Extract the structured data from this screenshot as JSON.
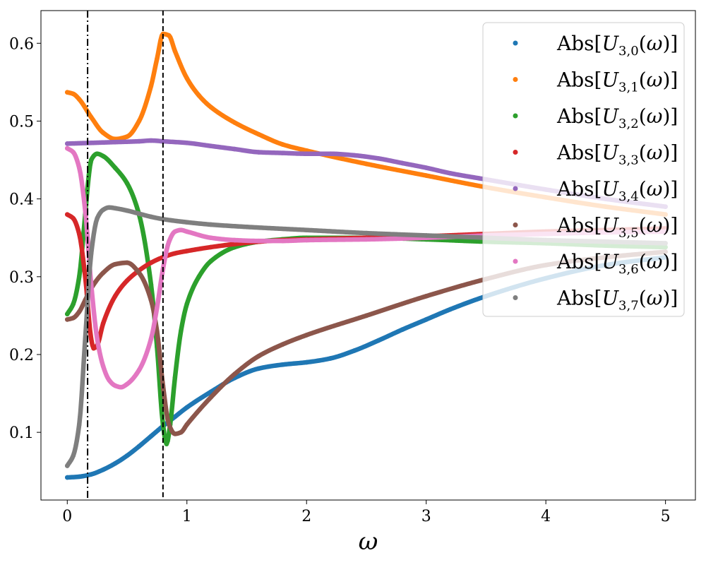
{
  "chart_data": {
    "type": "scatter",
    "title": "",
    "xlabel": "ω",
    "ylabel": "",
    "xlim": [
      -0.22,
      5.25
    ],
    "ylim": [
      0.013,
      0.642
    ],
    "x_ticks": [
      0,
      1,
      2,
      3,
      4,
      5
    ],
    "x_tick_labels": [
      "0",
      "1",
      "2",
      "3",
      "4",
      "5"
    ],
    "y_ticks": [
      0.1,
      0.2,
      0.3,
      0.4,
      0.5,
      0.6
    ],
    "y_tick_labels": [
      "0.1",
      "0.2",
      "0.3",
      "0.4",
      "0.5",
      "0.6"
    ],
    "grid": false,
    "legend_position": "top-right",
    "vertical_lines": [
      {
        "x": 0.17,
        "style": "dash-dot",
        "color": "#000000"
      },
      {
        "x": 0.8,
        "style": "dashed",
        "color": "#000000"
      }
    ],
    "series": [
      {
        "name": "Abs",
        "subscript": "3,0",
        "color": "#1f77b4",
        "x": [
          0,
          0.1,
          0.2,
          0.3,
          0.4,
          0.5,
          0.6,
          0.7,
          0.8,
          0.9,
          1.0,
          1.2,
          1.4,
          1.6,
          1.8,
          2.0,
          2.2,
          2.4,
          2.6,
          2.8,
          3.0,
          3.2,
          3.5,
          4.0,
          4.5,
          5.0
        ],
        "y": [
          0.042,
          0.043,
          0.046,
          0.052,
          0.06,
          0.07,
          0.082,
          0.095,
          0.108,
          0.12,
          0.132,
          0.152,
          0.17,
          0.182,
          0.187,
          0.19,
          0.195,
          0.205,
          0.218,
          0.232,
          0.245,
          0.258,
          0.275,
          0.298,
          0.315,
          0.325
        ]
      },
      {
        "name": "Abs",
        "subscript": "3,1",
        "color": "#ff7f0e",
        "x": [
          0,
          0.05,
          0.1,
          0.2,
          0.3,
          0.4,
          0.5,
          0.6,
          0.7,
          0.75,
          0.8,
          0.85,
          0.9,
          1.0,
          1.1,
          1.2,
          1.4,
          1.6,
          1.8,
          2.0,
          2.5,
          3.0,
          3.5,
          4.0,
          4.5,
          5.0
        ],
        "y": [
          0.537,
          0.535,
          0.528,
          0.505,
          0.485,
          0.477,
          0.48,
          0.5,
          0.545,
          0.58,
          0.612,
          0.61,
          0.59,
          0.555,
          0.533,
          0.518,
          0.498,
          0.483,
          0.47,
          0.462,
          0.445,
          0.43,
          0.415,
          0.402,
          0.39,
          0.38
        ]
      },
      {
        "name": "Abs",
        "subscript": "3,2",
        "color": "#2ca02c",
        "x": [
          0,
          0.05,
          0.1,
          0.15,
          0.18,
          0.2,
          0.25,
          0.3,
          0.4,
          0.5,
          0.6,
          0.7,
          0.75,
          0.8,
          0.83,
          0.86,
          0.9,
          0.95,
          1.0,
          1.1,
          1.2,
          1.4,
          1.6,
          1.8,
          2.0,
          2.5,
          3.0,
          3.5,
          4.0,
          4.5,
          5.0
        ],
        "y": [
          0.252,
          0.265,
          0.3,
          0.38,
          0.43,
          0.45,
          0.458,
          0.455,
          0.44,
          0.42,
          0.38,
          0.29,
          0.21,
          0.11,
          0.085,
          0.11,
          0.17,
          0.23,
          0.265,
          0.3,
          0.32,
          0.338,
          0.345,
          0.348,
          0.35,
          0.35,
          0.348,
          0.345,
          0.343,
          0.34,
          0.338
        ]
      },
      {
        "name": "Abs",
        "subscript": "3,3",
        "color": "#d62728",
        "x": [
          0,
          0.05,
          0.1,
          0.15,
          0.2,
          0.22,
          0.25,
          0.3,
          0.4,
          0.5,
          0.6,
          0.7,
          0.8,
          0.9,
          1.0,
          1.2,
          1.4,
          1.6,
          1.8,
          2.0,
          2.5,
          3.0,
          3.5,
          4.0,
          4.5,
          5.0
        ],
        "y": [
          0.38,
          0.375,
          0.355,
          0.3,
          0.22,
          0.208,
          0.212,
          0.24,
          0.275,
          0.295,
          0.308,
          0.318,
          0.325,
          0.33,
          0.333,
          0.338,
          0.342,
          0.345,
          0.347,
          0.348,
          0.35,
          0.352,
          0.355,
          0.358,
          0.36,
          0.362
        ]
      },
      {
        "name": "Abs",
        "subscript": "3,4",
        "color": "#9467bd",
        "x": [
          0,
          0.2,
          0.4,
          0.6,
          0.7,
          0.8,
          1.0,
          1.2,
          1.4,
          1.6,
          1.8,
          2.0,
          2.2,
          2.4,
          2.6,
          2.8,
          3.0,
          3.2,
          3.5,
          4.0,
          4.5,
          5.0
        ],
        "y": [
          0.471,
          0.472,
          0.473,
          0.474,
          0.475,
          0.474,
          0.472,
          0.468,
          0.464,
          0.46,
          0.459,
          0.458,
          0.458,
          0.456,
          0.452,
          0.446,
          0.44,
          0.433,
          0.425,
          0.412,
          0.4,
          0.39
        ]
      },
      {
        "name": "Abs",
        "subscript": "3,5",
        "color": "#8c564b",
        "x": [
          0,
          0.05,
          0.1,
          0.15,
          0.2,
          0.3,
          0.4,
          0.5,
          0.6,
          0.7,
          0.75,
          0.8,
          0.85,
          0.9,
          0.95,
          1.0,
          1.2,
          1.4,
          1.6,
          1.8,
          2.0,
          2.5,
          3.0,
          3.5,
          4.0,
          4.5,
          5.0
        ],
        "y": [
          0.245,
          0.247,
          0.255,
          0.27,
          0.285,
          0.305,
          0.316,
          0.318,
          0.305,
          0.27,
          0.23,
          0.16,
          0.11,
          0.098,
          0.1,
          0.11,
          0.145,
          0.175,
          0.198,
          0.213,
          0.225,
          0.25,
          0.275,
          0.297,
          0.315,
          0.325,
          0.332
        ]
      },
      {
        "name": "Abs",
        "subscript": "3,6",
        "color": "#e377c2",
        "x": [
          0,
          0.05,
          0.1,
          0.15,
          0.2,
          0.25,
          0.3,
          0.35,
          0.4,
          0.45,
          0.5,
          0.6,
          0.7,
          0.75,
          0.8,
          0.85,
          0.9,
          0.95,
          1.0,
          1.2,
          1.4,
          1.6,
          1.8,
          2.0,
          2.5,
          3.0,
          3.5,
          4.0,
          4.5,
          5.0
        ],
        "y": [
          0.465,
          0.46,
          0.44,
          0.385,
          0.29,
          0.22,
          0.185,
          0.167,
          0.16,
          0.158,
          0.162,
          0.18,
          0.22,
          0.26,
          0.31,
          0.345,
          0.358,
          0.36,
          0.358,
          0.35,
          0.347,
          0.346,
          0.346,
          0.347,
          0.348,
          0.35,
          0.353,
          0.355,
          0.357,
          0.358
        ]
      },
      {
        "name": "Abs",
        "subscript": "3,7",
        "color": "#7f7f7f",
        "x": [
          0,
          0.05,
          0.1,
          0.15,
          0.2,
          0.25,
          0.3,
          0.35,
          0.4,
          0.5,
          0.6,
          0.7,
          0.8,
          1.0,
          1.2,
          1.5,
          2.0,
          2.5,
          3.0,
          3.5,
          4.0,
          4.5,
          5.0
        ],
        "y": [
          0.057,
          0.07,
          0.11,
          0.22,
          0.33,
          0.375,
          0.386,
          0.389,
          0.388,
          0.385,
          0.381,
          0.377,
          0.374,
          0.37,
          0.367,
          0.364,
          0.36,
          0.356,
          0.353,
          0.35,
          0.347,
          0.345,
          0.343
        ]
      }
    ]
  }
}
